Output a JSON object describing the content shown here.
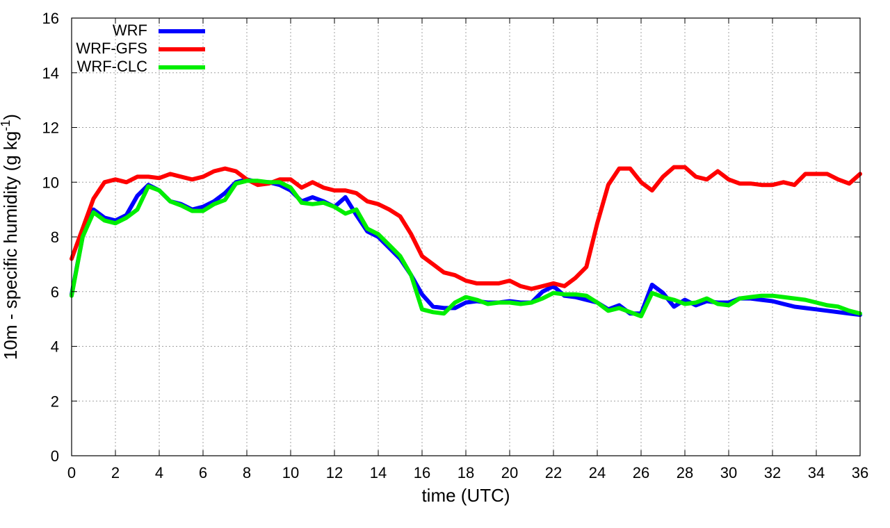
{
  "chart_data": {
    "type": "line",
    "title": "",
    "xlabel": "time (UTC)",
    "ylabel_main": "10m - specific humidity (g kg",
    "ylabel_sup": "-1",
    "ylabel_close": ")",
    "xlim": [
      0,
      36
    ],
    "ylim": [
      0,
      16
    ],
    "xticks": [
      "0",
      "2",
      "4",
      "6",
      "8",
      "10",
      "12",
      "14",
      "16",
      "18",
      "20",
      "22",
      "24",
      "26",
      "28",
      "30",
      "32",
      "34",
      "36"
    ],
    "yticks": [
      "0",
      "2",
      "4",
      "6",
      "8",
      "10",
      "12",
      "14",
      "16"
    ],
    "grid": true,
    "legend_position": "top-left",
    "x": [
      0,
      0.5,
      1,
      1.5,
      2,
      2.5,
      3,
      3.5,
      4,
      4.5,
      5,
      5.5,
      6,
      6.5,
      7,
      7.5,
      8,
      8.5,
      9,
      9.5,
      10,
      10.5,
      11,
      11.5,
      12,
      12.5,
      13,
      13.5,
      14,
      14.5,
      15,
      15.5,
      16,
      16.5,
      17,
      17.5,
      18,
      18.5,
      19,
      19.5,
      20,
      20.5,
      21,
      21.5,
      22,
      22.5,
      23,
      23.5,
      24,
      24.5,
      25,
      25.5,
      26,
      26.5,
      27,
      27.5,
      28,
      28.5,
      29,
      29.5,
      30,
      30.5,
      31,
      31.5,
      32,
      32.5,
      33,
      33.5,
      34,
      34.5,
      35,
      35.5,
      36
    ],
    "series": [
      {
        "name": "WRF",
        "color": "#0000ff",
        "values": [
          5.9,
          8.0,
          9.0,
          8.7,
          8.6,
          8.8,
          9.5,
          9.9,
          9.7,
          9.3,
          9.2,
          9.0,
          9.1,
          9.3,
          9.6,
          10.0,
          10.1,
          10.0,
          10.0,
          9.9,
          9.7,
          9.3,
          9.45,
          9.3,
          9.1,
          9.45,
          8.8,
          8.2,
          8.0,
          7.6,
          7.2,
          6.6,
          5.9,
          5.45,
          5.4,
          5.4,
          5.6,
          5.65,
          5.6,
          5.6,
          5.65,
          5.6,
          5.6,
          6.0,
          6.2,
          5.85,
          5.8,
          5.7,
          5.6,
          5.35,
          5.5,
          5.2,
          5.2,
          6.25,
          5.95,
          5.45,
          5.7,
          5.5,
          5.65,
          5.6,
          5.6,
          5.75,
          5.75,
          5.7,
          5.65,
          5.55,
          5.45,
          5.4,
          5.35,
          5.3,
          5.25,
          5.2,
          5.15
        ]
      },
      {
        "name": "WRF-GFS",
        "color": "#ff0000",
        "values": [
          7.2,
          8.3,
          9.4,
          10.0,
          10.1,
          10.0,
          10.2,
          10.2,
          10.15,
          10.3,
          10.2,
          10.1,
          10.2,
          10.4,
          10.5,
          10.4,
          10.1,
          9.9,
          9.95,
          10.1,
          10.1,
          9.8,
          10.0,
          9.8,
          9.7,
          9.7,
          9.6,
          9.3,
          9.2,
          9.0,
          8.75,
          8.1,
          7.3,
          7.0,
          6.7,
          6.6,
          6.4,
          6.3,
          6.3,
          6.3,
          6.4,
          6.2,
          6.1,
          6.2,
          6.3,
          6.2,
          6.5,
          6.9,
          8.5,
          9.9,
          10.5,
          10.5,
          10.0,
          9.7,
          10.2,
          10.55,
          10.55,
          10.2,
          10.1,
          10.4,
          10.1,
          9.95,
          9.95,
          9.9,
          9.9,
          10.0,
          9.9,
          10.3,
          10.3,
          10.3,
          10.1,
          9.95,
          10.3
        ]
      },
      {
        "name": "WRF-CLC",
        "color": "#00ee00",
        "values": [
          5.85,
          8.0,
          8.9,
          8.6,
          8.5,
          8.7,
          9.0,
          9.85,
          9.7,
          9.3,
          9.15,
          8.95,
          8.95,
          9.2,
          9.35,
          9.95,
          10.05,
          10.05,
          10.0,
          10.0,
          9.8,
          9.25,
          9.2,
          9.25,
          9.1,
          8.85,
          9.0,
          8.3,
          8.1,
          7.7,
          7.3,
          6.6,
          5.35,
          5.25,
          5.2,
          5.6,
          5.8,
          5.7,
          5.55,
          5.6,
          5.6,
          5.55,
          5.6,
          5.75,
          5.95,
          5.9,
          5.9,
          5.85,
          5.6,
          5.3,
          5.4,
          5.25,
          5.1,
          5.95,
          5.8,
          5.7,
          5.55,
          5.6,
          5.75,
          5.55,
          5.5,
          5.75,
          5.8,
          5.85,
          5.85,
          5.8,
          5.75,
          5.7,
          5.6,
          5.5,
          5.45,
          5.3,
          5.2
        ]
      }
    ]
  }
}
